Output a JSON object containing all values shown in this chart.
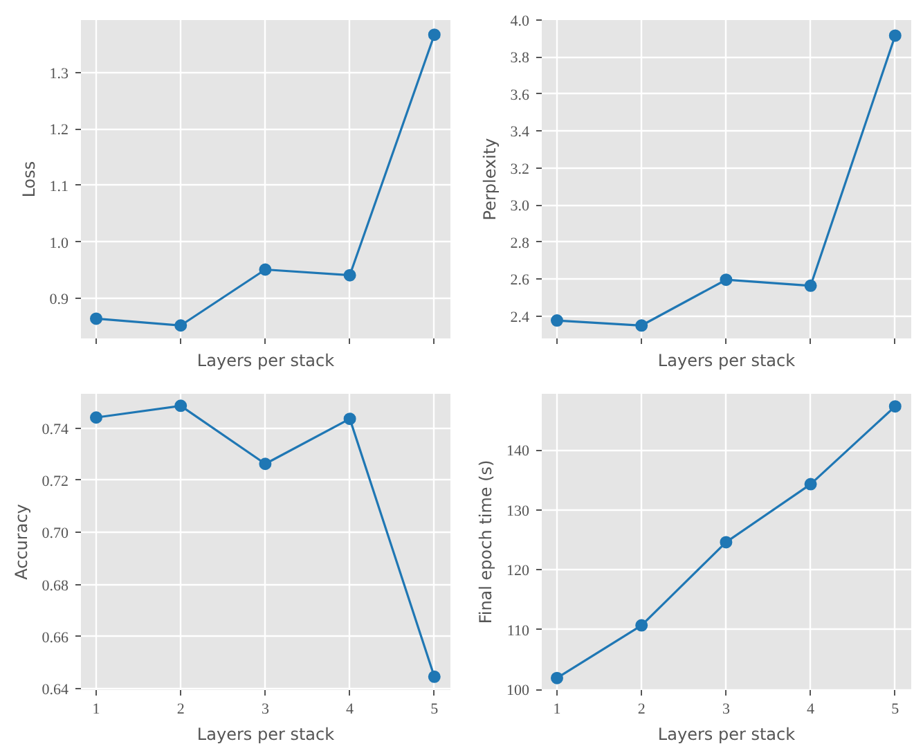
{
  "chart_data": [
    {
      "type": "line",
      "xlabel": "Layers per stack",
      "ylabel": "Loss",
      "x": [
        1,
        2,
        3,
        4,
        5
      ],
      "color": "#1f77b4",
      "marker": "circle",
      "grid": true,
      "tick_labels": "y",
      "xlim": [
        0.82,
        5.19
      ],
      "xticks": [
        1,
        2,
        3,
        4,
        5
      ],
      "ylim": [
        0.829,
        1.393
      ],
      "yticks": [
        0.9,
        {
          "value": 1.0,
          "label": "1.0"
        },
        1.1,
        1.2,
        1.3
      ],
      "values": [
        0.864,
        0.852,
        0.951,
        0.941,
        1.367
      ]
    },
    {
      "type": "line",
      "xlabel": "Layers per stack",
      "ylabel": "Perplexity",
      "x": [
        1,
        2,
        3,
        4,
        5
      ],
      "color": "#1f77b4",
      "marker": "circle",
      "grid": true,
      "tick_labels": "y",
      "xlim": [
        0.82,
        5.19
      ],
      "xticks": [
        1,
        2,
        3,
        4,
        5
      ],
      "ylim": [
        2.28,
        4.0
      ],
      "yticks": [
        2.4,
        2.6,
        2.8,
        {
          "value": 3.0,
          "label": "3.0"
        },
        3.2,
        3.4,
        3.6,
        3.8,
        {
          "value": 4.0,
          "label": "4.0"
        }
      ],
      "values": [
        2.377,
        2.35,
        2.597,
        2.565,
        3.916
      ]
    },
    {
      "type": "line",
      "xlabel": "Layers per stack",
      "ylabel": "Accuracy",
      "x": [
        1,
        2,
        3,
        4,
        5
      ],
      "color": "#1f77b4",
      "marker": "circle",
      "grid": true,
      "xlim": [
        0.82,
        5.19
      ],
      "xticks": [
        1,
        2,
        3,
        4,
        5
      ],
      "ylim": [
        0.6395,
        0.7532
      ],
      "yticks": [
        0.64,
        0.66,
        0.68,
        {
          "value": 0.7,
          "label": "0.70"
        },
        0.72,
        0.74
      ],
      "values": [
        0.7441,
        0.7486,
        0.7263,
        0.7436,
        0.6446
      ]
    },
    {
      "type": "line",
      "xlabel": "Layers per stack",
      "ylabel": "Final epoch time (s)",
      "x": [
        1,
        2,
        3,
        4,
        5
      ],
      "color": "#1f77b4",
      "marker": "circle",
      "grid": true,
      "xlim": [
        0.82,
        5.19
      ],
      "xticks": [
        1,
        2,
        3,
        4,
        5
      ],
      "ylim": [
        99.9,
        149.4
      ],
      "yticks": [
        100,
        110,
        120,
        130,
        140
      ],
      "values": [
        101.9,
        110.7,
        124.6,
        134.3,
        147.3
      ]
    }
  ]
}
